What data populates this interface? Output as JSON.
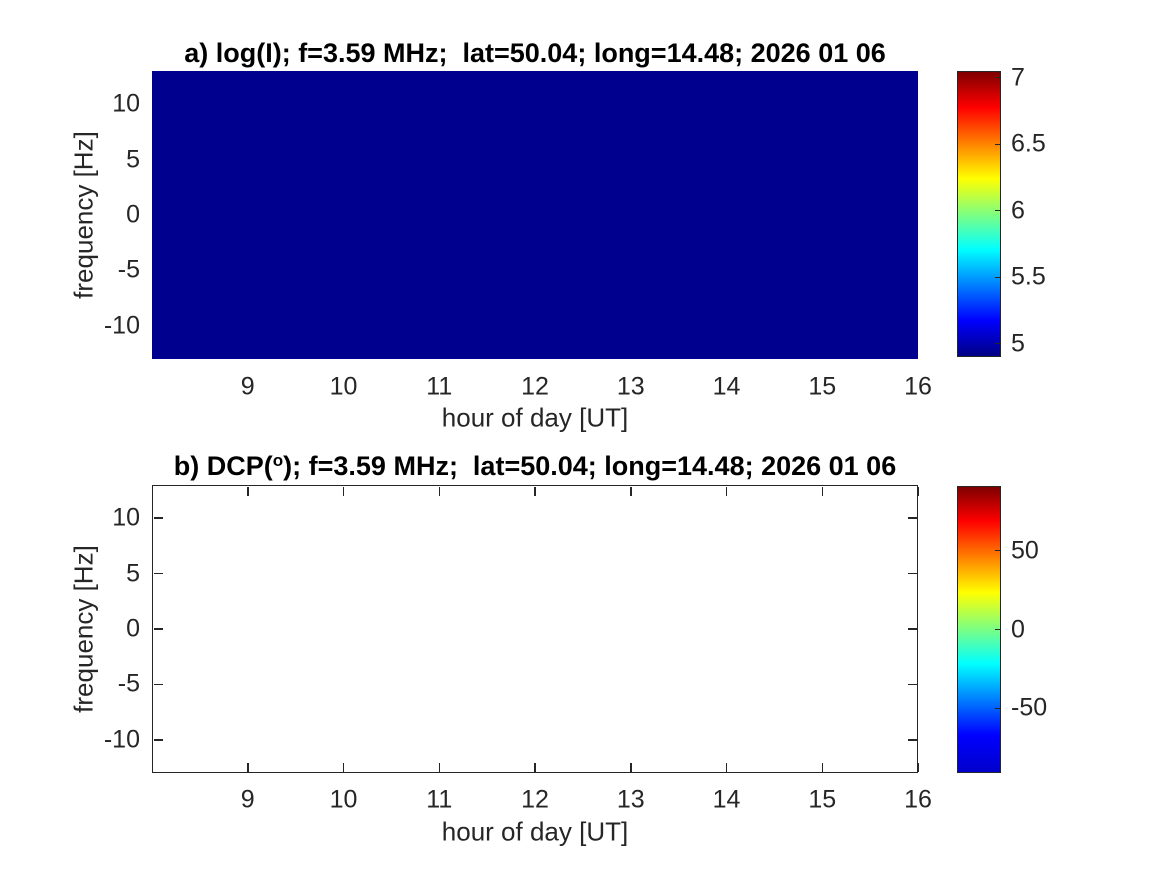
{
  "figure": {
    "background": "#ffffff",
    "title_color": "#000000",
    "axis_color": "#262626",
    "tick_label_color": "#262626"
  },
  "chart_data": [
    {
      "type": "heatmap",
      "panel": "a",
      "title": "a) log(I); f=3.59 MHz;  lat=50.04; long=14.48; 2026 01 06",
      "title_parts": {
        "pre": "a) log(I); f=3.59 MHz;  lat=50.04; long=14.48; 2026 01 06",
        "sup": "",
        "post": ""
      },
      "xlabel": "hour of day [UT]",
      "ylabel": "frequency [Hz]",
      "xlim": [
        8,
        16
      ],
      "ylim": [
        -13,
        13
      ],
      "xticks": [
        9,
        10,
        11,
        12,
        13,
        14,
        15,
        16
      ],
      "yticks": [
        10,
        5,
        0,
        -5,
        -10
      ],
      "colormap": "jet",
      "fill_color": "#00008F",
      "uniform_value": 5,
      "values_summary": "entire map uniform at log(I) ~ 5 (colormap minimum, dark blue); no structure visible",
      "grid": false,
      "colorbar": {
        "range": [
          4.9,
          7.05
        ],
        "ticks": [
          7,
          6.5,
          6,
          5.5,
          5
        ],
        "tick_labels": [
          "7",
          "6.5",
          "6",
          "5.5",
          "5"
        ],
        "gradient": [
          [
            "#7f0000",
            "0%"
          ],
          [
            "#ff0000",
            "12.5%"
          ],
          [
            "#ffff00",
            "37.5%"
          ],
          [
            "#00ffff",
            "62.5%"
          ],
          [
            "#0000ff",
            "87.5%"
          ],
          [
            "#000084",
            "100%"
          ]
        ]
      }
    },
    {
      "type": "heatmap",
      "panel": "b",
      "title": "b) DCP(o); f=3.59 MHz;  lat=50.04; long=14.48; 2026 01 06",
      "title_parts": {
        "pre": "b) DCP(",
        "sup": "o",
        "post": "); f=3.59 MHz;  lat=50.04; long=14.48; 2026 01 06"
      },
      "xlabel": "hour of day [UT]",
      "ylabel": "frequency [Hz]",
      "xlim": [
        8,
        16
      ],
      "ylim": [
        -13,
        13
      ],
      "xticks": [
        9,
        10,
        11,
        12,
        13,
        14,
        15,
        16
      ],
      "yticks": [
        10,
        5,
        0,
        -5,
        -10
      ],
      "colormap": "jet",
      "fill_color": "#ffffff",
      "uniform_value": null,
      "values_summary": "no data plotted (empty white axes with box and inward tick marks)",
      "grid": false,
      "colorbar": {
        "range": [
          -91,
          91
        ],
        "ticks": [
          50,
          0,
          -50
        ],
        "tick_labels": [
          "50",
          "0",
          "-50"
        ],
        "gradient": [
          [
            "#7f0000",
            "0%"
          ],
          [
            "#ff0000",
            "12%"
          ],
          [
            "#ffff00",
            "37%"
          ],
          [
            "#00ffff",
            "62%"
          ],
          [
            "#0000ff",
            "87%"
          ],
          [
            "#0000cc",
            "100%"
          ]
        ]
      }
    }
  ]
}
